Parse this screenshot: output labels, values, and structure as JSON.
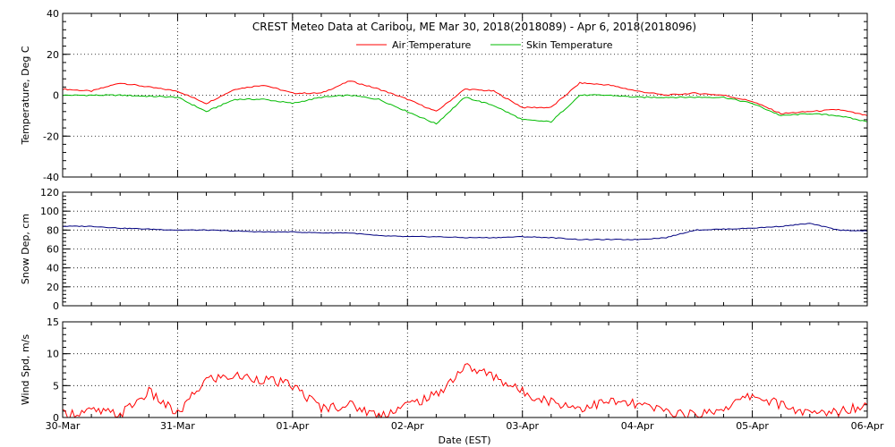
{
  "chart_data": [
    {
      "type": "line",
      "title": "CREST Meteo Data at Caribou, ME   Mar 30, 2018(2018089) - Apr  6, 2018(2018096)",
      "ylabel": "Temperature, Deg C",
      "ylim": [
        -40,
        40
      ],
      "yticks": [
        "-40",
        "-20",
        "0",
        "20",
        "40"
      ],
      "x": [
        0,
        0.25,
        0.5,
        0.75,
        1.0,
        1.25,
        1.5,
        1.75,
        2.0,
        2.25,
        2.5,
        2.75,
        3.0,
        3.25,
        3.5,
        3.75,
        4.0,
        4.25,
        4.5,
        4.75,
        5.0,
        5.25,
        5.5,
        5.75,
        6.0,
        6.25,
        6.5,
        6.75,
        7.0
      ],
      "series": [
        {
          "name": "Air Temperature",
          "color": "#ff0000",
          "values": [
            3,
            2,
            6,
            4,
            2,
            -4,
            3,
            5,
            1,
            1,
            7,
            3,
            -2,
            -8,
            3,
            2,
            -6,
            -6,
            6,
            5,
            2,
            0,
            1,
            0,
            -3,
            -9,
            -8,
            -7,
            -10
          ]
        },
        {
          "name": "Skin Temperature",
          "color": "#00bb00",
          "values": [
            0,
            0,
            0,
            -0.5,
            -1,
            -8,
            -2,
            -2,
            -4,
            -1,
            0,
            -2,
            -8,
            -14,
            -1,
            -5,
            -12,
            -13,
            0,
            0,
            -1,
            -1,
            -1,
            -1,
            -4,
            -10,
            -9,
            -10,
            -13
          ]
        }
      ],
      "legend": "top-center"
    },
    {
      "type": "line",
      "ylabel": "Snow Dep, cm",
      "ylim": [
        0,
        120
      ],
      "yticks": [
        "0",
        "20",
        "40",
        "60",
        "80",
        "100",
        "120"
      ],
      "x": [
        0,
        0.25,
        0.5,
        0.75,
        1.0,
        1.25,
        1.5,
        1.75,
        2.0,
        2.25,
        2.5,
        2.75,
        3.0,
        3.25,
        3.5,
        3.75,
        4.0,
        4.25,
        4.5,
        4.75,
        5.0,
        5.25,
        5.5,
        5.75,
        6.0,
        6.25,
        6.5,
        6.75,
        7.0
      ],
      "series": [
        {
          "name": "Snow Depth",
          "color": "#000080",
          "values": [
            84,
            84,
            82,
            81,
            80,
            80,
            79,
            78,
            78,
            77,
            77,
            74,
            73,
            73,
            72,
            72,
            73,
            72,
            70,
            70,
            70,
            72,
            80,
            81,
            82,
            84,
            87,
            80,
            79
          ]
        }
      ]
    },
    {
      "type": "line",
      "ylabel": "Wind Spd, m/s",
      "xlabel": "Date (EST)",
      "ylim": [
        0,
        15
      ],
      "yticks": [
        "0",
        "5",
        "10",
        "15"
      ],
      "xticks": [
        "30-Mar",
        "31-Mar",
        "01-Apr",
        "02-Apr",
        "03-Apr",
        "04-Apr",
        "05-Apr",
        "06-Apr"
      ],
      "x": [
        0,
        0.25,
        0.5,
        0.75,
        1.0,
        1.25,
        1.5,
        1.75,
        2.0,
        2.25,
        2.5,
        2.75,
        3.0,
        3.25,
        3.5,
        3.75,
        4.0,
        4.25,
        4.5,
        4.75,
        5.0,
        5.25,
        5.5,
        5.75,
        6.0,
        6.25,
        6.5,
        6.75,
        7.0
      ],
      "series": [
        {
          "name": "Wind Speed",
          "color": "#ff0000",
          "values": [
            0.5,
            1,
            0.5,
            4,
            0.5,
            6,
            6.5,
            6,
            5,
            1.5,
            2,
            0.3,
            2,
            3.5,
            8,
            6.5,
            4,
            2.5,
            1.5,
            2.5,
            2,
            1,
            0.3,
            1.5,
            3.5,
            2,
            0.5,
            1,
            2
          ]
        }
      ]
    }
  ]
}
